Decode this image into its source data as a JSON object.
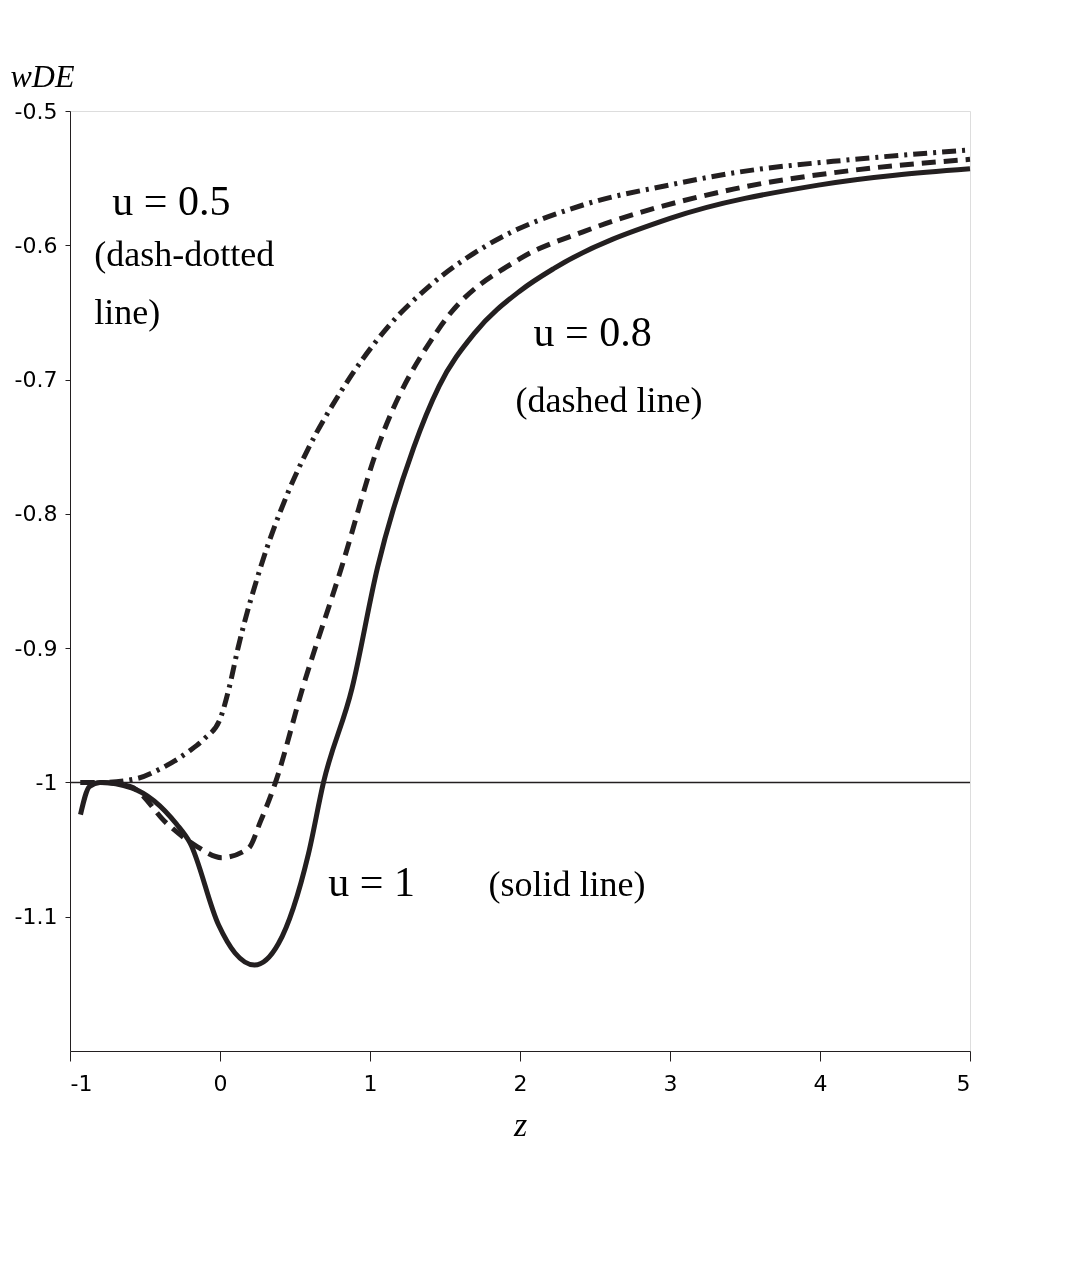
{
  "chart_data": {
    "type": "line",
    "xlabel": "z",
    "ylabel": "wDE",
    "xlim": [
      -1,
      5
    ],
    "ylim": [
      -1.2,
      -0.5
    ],
    "xticks": [
      -1,
      0,
      1,
      2,
      3,
      4,
      5
    ],
    "yticks": [
      -0.5,
      -0.6,
      -0.7,
      -0.8,
      -0.9,
      -1,
      -1.1
    ],
    "grid": false,
    "series": [
      {
        "color": "#231f20",
        "line_style": "dashdot",
        "x": [
          -0.93,
          -0.8,
          -0.55,
          -0.4,
          -0.21,
          -0.1,
          0,
          0.06,
          0.12,
          0.27,
          0.45,
          0.59,
          0.8,
          1.11,
          1.4,
          1.78,
          2.42,
          3.0,
          3.43,
          4.23,
          5
        ],
        "values": [
          -1.0,
          -1.0,
          -0.997,
          -0.99,
          -0.977,
          -0.967,
          -0.953,
          -0.93,
          -0.9,
          -0.84,
          -0.785,
          -0.751,
          -0.71,
          -0.662,
          -0.63,
          -0.6,
          -0.57,
          -0.555,
          -0.546,
          -0.536,
          -0.529
        ]
      },
      {
        "color": "#231f20",
        "line_style": "dashed",
        "x": [
          -0.93,
          -0.8,
          -0.6,
          -0.35,
          -0.15,
          0.01,
          0.19,
          0.27,
          0.37,
          0.55,
          0.81,
          1.05,
          1.46,
          2.0,
          2.42,
          3.43,
          4.23,
          5
        ],
        "values": [
          -1.0,
          -1.0,
          -1.003,
          -1.031,
          -1.048,
          -1.056,
          -1.049,
          -1.029,
          -1.0,
          -0.93,
          -0.84,
          -0.751,
          -0.662,
          -0.61,
          -0.59,
          -0.558,
          -0.544,
          -0.536
        ]
      },
      {
        "color": "#231f20",
        "line_style": "solid",
        "x": [
          -0.93,
          -0.87,
          -0.8,
          -0.59,
          -0.29,
          -0.2,
          -0.01,
          0.1,
          0.23,
          0.39,
          0.59,
          0.69,
          0.88,
          1.05,
          1.29,
          1.46,
          1.7,
          2.0,
          2.23,
          3.0,
          4.0,
          5
        ],
        "values": [
          -1.024,
          -1.003,
          -1.0,
          -1.004,
          -1.031,
          -1.045,
          -1.106,
          -1.127,
          -1.136,
          -1.12,
          -1.053,
          -1.0,
          -0.93,
          -0.84,
          -0.751,
          -0.705,
          -0.665,
          -0.634,
          -0.617,
          -0.58,
          -0.555,
          -0.543
        ]
      }
    ],
    "ref_lines": [
      {
        "axis": "y",
        "value": -1,
        "color": "#231f20"
      }
    ],
    "annotations": [
      "u = 0.5",
      "(dash-dotted\nline)",
      "u = 0.8",
      "(dashed line)",
      "u = 1",
      "(solid line)"
    ]
  }
}
